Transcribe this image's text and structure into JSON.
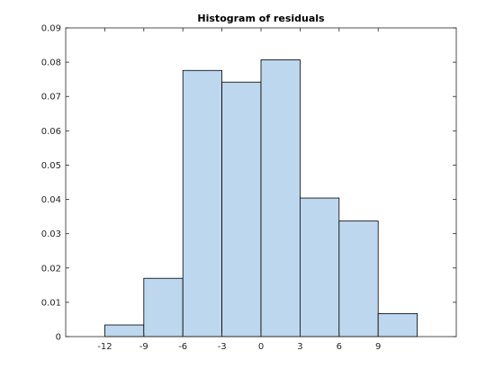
{
  "chart_data": {
    "type": "bar",
    "title": "Histogram of residuals",
    "xlabel": "",
    "ylabel": "",
    "xlim": [
      -15,
      15
    ],
    "ylim": [
      0,
      0.09
    ],
    "bins": [
      {
        "start": -12,
        "end": -9,
        "value": 0.0034
      },
      {
        "start": -9,
        "end": -6,
        "value": 0.017
      },
      {
        "start": -6,
        "end": -3,
        "value": 0.0776
      },
      {
        "start": -3,
        "end": 0,
        "value": 0.0742
      },
      {
        "start": 0,
        "end": 3,
        "value": 0.0807
      },
      {
        "start": 3,
        "end": 6,
        "value": 0.0404
      },
      {
        "start": 6,
        "end": 9,
        "value": 0.0337
      },
      {
        "start": 9,
        "end": 12,
        "value": 0.0067
      }
    ],
    "x_ticks": [
      -12,
      -9,
      -6,
      -3,
      0,
      3,
      6,
      9
    ],
    "y_ticks": [
      0,
      0.01,
      0.02,
      0.03,
      0.04,
      0.05,
      0.06,
      0.07,
      0.08,
      0.09
    ],
    "y_tick_labels": [
      "0",
      "0.01",
      "0.02",
      "0.03",
      "0.04",
      "0.05",
      "0.06",
      "0.07",
      "0.08",
      "0.09"
    ],
    "grid": false,
    "legend": "none",
    "colors": {
      "bar_fill": "#BDD7EE",
      "bar_edge": "#000000",
      "axes": "#262626",
      "background": "#FFFFFF"
    }
  }
}
